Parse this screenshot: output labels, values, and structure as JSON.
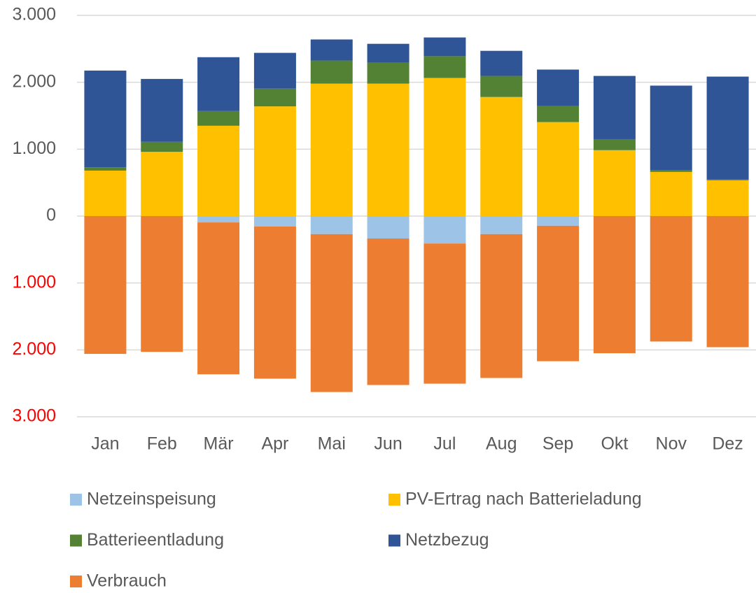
{
  "chart_data": {
    "type": "stacked_bar",
    "categories": [
      "Jan",
      "Feb",
      "Mär",
      "Apr",
      "Mai",
      "Jun",
      "Jul",
      "Aug",
      "Sep",
      "Okt",
      "Nov",
      "Dez"
    ],
    "series": [
      {
        "name": "Netzeinspeisung",
        "color": "#9dc3e6",
        "values": [
          0,
          0,
          -95,
          -155,
          -270,
          -335,
          -410,
          -270,
          -145,
          0,
          0,
          0
        ]
      },
      {
        "name": "PV-Ertrag nach Batterieladung",
        "color": "#ffc000",
        "values": [
          680,
          960,
          1350,
          1640,
          1980,
          1980,
          2065,
          1780,
          1405,
          985,
          660,
          535
        ]
      },
      {
        "name": "Batterieentladung",
        "color": "#548235",
        "values": [
          50,
          150,
          220,
          265,
          345,
          315,
          325,
          315,
          240,
          165,
          30,
          10
        ]
      },
      {
        "name": "Netzbezug",
        "color": "#2f5597",
        "values": [
          1445,
          940,
          805,
          535,
          315,
          280,
          280,
          375,
          545,
          945,
          1260,
          1540
        ]
      },
      {
        "name": "Verbrauch",
        "color": "#ed7d31",
        "values": [
          -2060,
          -2030,
          -2270,
          -2275,
          -2360,
          -2190,
          -2095,
          -2150,
          -2025,
          -2050,
          -1875,
          -1960
        ]
      }
    ],
    "ylim": [
      -3000,
      3000
    ],
    "yticks": [
      {
        "value": 3000,
        "label": "3.000"
      },
      {
        "value": 2000,
        "label": "2.000"
      },
      {
        "value": 1000,
        "label": "1.000"
      },
      0,
      {
        "value": -1000,
        "label": "1.000"
      },
      {
        "value": -2000,
        "label": "2.000"
      },
      {
        "value": -3000,
        "label": "3.000"
      }
    ],
    "negative_tick_color": "#ff0000",
    "grid": true,
    "legend": "bottom"
  }
}
